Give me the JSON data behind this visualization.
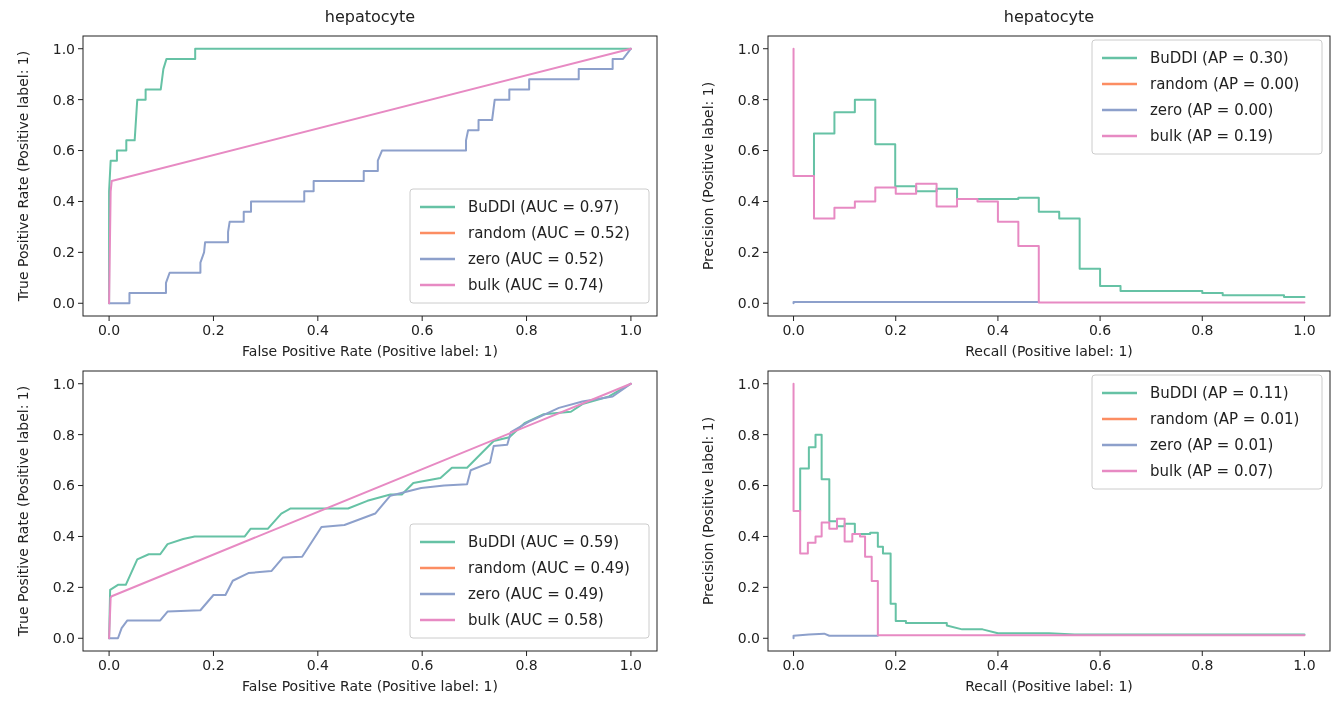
{
  "chart_data": [
    {
      "type": "line",
      "title": "hepatocyte",
      "xlabel": "False Positive Rate (Positive label: 1)",
      "ylabel": "True Positive Rate (Positive label: 1)",
      "xlim": [
        -0.05,
        1.05
      ],
      "ylim": [
        -0.05,
        1.05
      ],
      "xticks": [
        {
          "value": 0,
          "label": "0.0"
        },
        {
          "value": 0.2,
          "label": "0.2"
        },
        {
          "value": 0.4,
          "label": "0.4"
        },
        {
          "value": 0.6,
          "label": "0.6"
        },
        {
          "value": 0.8,
          "label": "0.8"
        },
        {
          "value": 1,
          "label": "1.0"
        }
      ],
      "yticks": [
        {
          "value": 0,
          "label": "0.0"
        },
        {
          "value": 0.2,
          "label": "0.2"
        },
        {
          "value": 0.4,
          "label": "0.4"
        },
        {
          "value": 0.6,
          "label": "0.6"
        },
        {
          "value": 0.8,
          "label": "0.8"
        },
        {
          "value": 1,
          "label": "1.0"
        }
      ],
      "legend": "bottom right",
      "series": [
        {
          "name": "BuDDI (AUC = 0.97)",
          "color": "#66c2a5",
          "x": [
            0,
            0,
            0.003,
            0.015,
            0.015,
            0.033,
            0.033,
            0.049,
            0.054,
            0.07,
            0.07,
            0.099,
            0.104,
            0.11,
            0.165,
            0.165,
            1
          ],
          "values": [
            0,
            0.44,
            0.56,
            0.56,
            0.6,
            0.6,
            0.64,
            0.64,
            0.8,
            0.8,
            0.84,
            0.84,
            0.92,
            0.96,
            0.96,
            1,
            1
          ]
        },
        {
          "name": "random (AUC = 0.52)",
          "color": "#fc8d62"
        },
        {
          "name": "zero (AUC = 0.52)",
          "color": "#8da0cb",
          "x": [
            0,
            0.039,
            0.039,
            0.109,
            0.109,
            0.116,
            0.175,
            0.175,
            0.182,
            0.184,
            0.228,
            0.228,
            0.231,
            0.258,
            0.258,
            0.272,
            0.272,
            0.374,
            0.374,
            0.392,
            0.392,
            0.488,
            0.488,
            0.515,
            0.515,
            0.523,
            0.684,
            0.684,
            0.688,
            0.708,
            0.708,
            0.734,
            0.739,
            0.767,
            0.767,
            0.805,
            0.805,
            0.9,
            0.9,
            0.965,
            0.965,
            0.985,
            1
          ],
          "values": [
            0,
            0,
            0.04,
            0.04,
            0.08,
            0.12,
            0.12,
            0.16,
            0.2,
            0.24,
            0.24,
            0.28,
            0.32,
            0.32,
            0.36,
            0.36,
            0.4,
            0.4,
            0.44,
            0.44,
            0.48,
            0.48,
            0.52,
            0.52,
            0.56,
            0.6,
            0.6,
            0.64,
            0.68,
            0.68,
            0.72,
            0.72,
            0.8,
            0.8,
            0.84,
            0.84,
            0.88,
            0.88,
            0.92,
            0.92,
            0.96,
            0.96,
            1
          ]
        },
        {
          "name": "bulk (AUC = 0.74)",
          "color": "#e78ac3",
          "x": [
            0,
            0.003,
            0.005,
            1
          ],
          "values": [
            0,
            0.44,
            0.48,
            1
          ]
        }
      ]
    },
    {
      "type": "line",
      "title": "hepatocyte",
      "xlabel": "Recall (Positive label: 1)",
      "ylabel": "Precision (Positive label: 1)",
      "xlim": [
        -0.05,
        1.05
      ],
      "ylim": [
        -0.05,
        1.05
      ],
      "xticks": [
        {
          "value": 0,
          "label": "0.0"
        },
        {
          "value": 0.2,
          "label": "0.2"
        },
        {
          "value": 0.4,
          "label": "0.4"
        },
        {
          "value": 0.6,
          "label": "0.6"
        },
        {
          "value": 0.8,
          "label": "0.8"
        },
        {
          "value": 1,
          "label": "1.0"
        }
      ],
      "yticks": [
        {
          "value": 0,
          "label": "0.0"
        },
        {
          "value": 0.2,
          "label": "0.2"
        },
        {
          "value": 0.4,
          "label": "0.4"
        },
        {
          "value": 0.6,
          "label": "0.6"
        },
        {
          "value": 0.8,
          "label": "0.8"
        },
        {
          "value": 1,
          "label": "1.0"
        }
      ],
      "legend": "top right",
      "series": [
        {
          "name": "BuDDI (AP = 0.30)",
          "color": "#66c2a5",
          "x": [
            0.04,
            0.04,
            0.08,
            0.08,
            0.12,
            0.12,
            0.16,
            0.16,
            0.199,
            0.199,
            0.24,
            0.24,
            0.28,
            0.28,
            0.32,
            0.32,
            0.44,
            0.44,
            0.48,
            0.48,
            0.52,
            0.52,
            0.56,
            0.56,
            0.6,
            0.6,
            0.64,
            0.64,
            0.8,
            0.8,
            0.84,
            0.84,
            0.96,
            0.96,
            1
          ],
          "values": [
            0.5,
            0.667,
            0.667,
            0.75,
            0.75,
            0.8,
            0.8,
            0.625,
            0.625,
            0.46,
            0.46,
            0.44,
            0.44,
            0.45,
            0.45,
            0.41,
            0.41,
            0.415,
            0.415,
            0.36,
            0.36,
            0.333,
            0.333,
            0.136,
            0.136,
            0.068,
            0.068,
            0.048,
            0.048,
            0.04,
            0.04,
            0.032,
            0.032,
            0.025,
            0.025
          ]
        },
        {
          "name": "random (AP = 0.00)",
          "color": "#fc8d62"
        },
        {
          "name": "zero (AP = 0.00)",
          "color": "#8da0cb",
          "x": [
            0,
            0,
            0.48
          ],
          "values": [
            0,
            0.005,
            0.005
          ]
        },
        {
          "name": "bulk (AP = 0.19)",
          "color": "#e78ac3",
          "x": [
            0,
            0,
            0.04,
            0.04,
            0.08,
            0.08,
            0.12,
            0.12,
            0.16,
            0.16,
            0.2,
            0.2,
            0.24,
            0.24,
            0.28,
            0.28,
            0.32,
            0.32,
            0.36,
            0.36,
            0.4,
            0.4,
            0.44,
            0.44,
            0.48,
            0.48,
            1
          ],
          "values": [
            1,
            0.5,
            0.5,
            0.333,
            0.333,
            0.375,
            0.375,
            0.4,
            0.4,
            0.455,
            0.455,
            0.43,
            0.43,
            0.47,
            0.47,
            0.38,
            0.38,
            0.41,
            0.41,
            0.4,
            0.4,
            0.32,
            0.32,
            0.225,
            0.225,
            0.003,
            0.003
          ]
        }
      ]
    },
    {
      "type": "line",
      "xlabel": "False Positive Rate (Positive label: 1)",
      "ylabel": "True Positive Rate (Positive label: 1)",
      "xlim": [
        -0.05,
        1.05
      ],
      "ylim": [
        -0.05,
        1.05
      ],
      "xticks": [
        {
          "value": 0,
          "label": "0.0"
        },
        {
          "value": 0.2,
          "label": "0.2"
        },
        {
          "value": 0.4,
          "label": "0.4"
        },
        {
          "value": 0.6,
          "label": "0.6"
        },
        {
          "value": 0.8,
          "label": "0.8"
        },
        {
          "value": 1,
          "label": "1.0"
        }
      ],
      "yticks": [
        {
          "value": 0,
          "label": "0.0"
        },
        {
          "value": 0.2,
          "label": "0.2"
        },
        {
          "value": 0.4,
          "label": "0.4"
        },
        {
          "value": 0.6,
          "label": "0.6"
        },
        {
          "value": 0.8,
          "label": "0.8"
        },
        {
          "value": 1,
          "label": "1.0"
        }
      ],
      "legend": "bottom right",
      "series": [
        {
          "name": "BuDDI (AUC = 0.59)",
          "color": "#66c2a5",
          "x": [
            0,
            0.002,
            0.017,
            0.032,
            0.054,
            0.076,
            0.098,
            0.112,
            0.142,
            0.164,
            0.26,
            0.271,
            0.304,
            0.33,
            0.348,
            0.458,
            0.495,
            0.539,
            0.561,
            0.583,
            0.635,
            0.657,
            0.686,
            0.715,
            0.737,
            0.767,
            0.796,
            0.833,
            0.885,
            0.907,
            0.958,
            1
          ],
          "values": [
            0,
            0.19,
            0.21,
            0.21,
            0.31,
            0.33,
            0.33,
            0.37,
            0.39,
            0.4,
            0.4,
            0.43,
            0.43,
            0.49,
            0.51,
            0.51,
            0.54,
            0.565,
            0.565,
            0.61,
            0.63,
            0.67,
            0.67,
            0.73,
            0.775,
            0.79,
            0.845,
            0.88,
            0.89,
            0.92,
            0.95,
            1
          ]
        },
        {
          "name": "random (AUC = 0.49)",
          "color": "#fc8d62"
        },
        {
          "name": "zero (AUC = 0.49)",
          "color": "#8da0cb",
          "x": [
            0,
            0.017,
            0.024,
            0.035,
            0.098,
            0.112,
            0.175,
            0.2,
            0.223,
            0.237,
            0.267,
            0.311,
            0.333,
            0.37,
            0.407,
            0.451,
            0.51,
            0.539,
            0.598,
            0.642,
            0.686,
            0.693,
            0.73,
            0.737,
            0.763,
            0.77,
            0.804,
            0.862,
            0.907,
            0.965,
            1
          ],
          "values": [
            0,
            0,
            0.04,
            0.07,
            0.07,
            0.105,
            0.11,
            0.17,
            0.17,
            0.226,
            0.256,
            0.264,
            0.317,
            0.32,
            0.437,
            0.445,
            0.49,
            0.56,
            0.59,
            0.6,
            0.605,
            0.66,
            0.69,
            0.755,
            0.76,
            0.81,
            0.85,
            0.905,
            0.93,
            0.95,
            1
          ]
        },
        {
          "name": "bulk (AUC = 0.58)",
          "color": "#e78ac3",
          "x": [
            0,
            0.003,
            0.005,
            1
          ],
          "values": [
            0,
            0.16,
            0.165,
            1
          ]
        }
      ]
    },
    {
      "type": "line",
      "xlabel": "Recall (Positive label: 1)",
      "ylabel": "Precision (Positive label: 1)",
      "xlim": [
        -0.05,
        1.05
      ],
      "ylim": [
        -0.05,
        1.05
      ],
      "xticks": [
        {
          "value": 0,
          "label": "0.0"
        },
        {
          "value": 0.2,
          "label": "0.2"
        },
        {
          "value": 0.4,
          "label": "0.4"
        },
        {
          "value": 0.6,
          "label": "0.6"
        },
        {
          "value": 0.8,
          "label": "0.8"
        },
        {
          "value": 1,
          "label": "1.0"
        }
      ],
      "yticks": [
        {
          "value": 0,
          "label": "0.0"
        },
        {
          "value": 0.2,
          "label": "0.2"
        },
        {
          "value": 0.4,
          "label": "0.4"
        },
        {
          "value": 0.6,
          "label": "0.6"
        },
        {
          "value": 0.8,
          "label": "0.8"
        },
        {
          "value": 1,
          "label": "1.0"
        }
      ],
      "legend": "top right",
      "series": [
        {
          "name": "BuDDI (AP = 0.11)",
          "color": "#66c2a5",
          "x": [
            0.013,
            0.013,
            0.03,
            0.03,
            0.043,
            0.043,
            0.055,
            0.055,
            0.07,
            0.07,
            0.085,
            0.085,
            0.1,
            0.1,
            0.12,
            0.12,
            0.15,
            0.15,
            0.165,
            0.165,
            0.175,
            0.175,
            0.19,
            0.19,
            0.2,
            0.2,
            0.22,
            0.22,
            0.3,
            0.3,
            0.33,
            0.37,
            0.4,
            0.5,
            0.55,
            1
          ],
          "values": [
            0.5,
            0.667,
            0.667,
            0.75,
            0.75,
            0.8,
            0.8,
            0.625,
            0.625,
            0.46,
            0.46,
            0.44,
            0.44,
            0.45,
            0.45,
            0.41,
            0.41,
            0.415,
            0.415,
            0.36,
            0.36,
            0.333,
            0.333,
            0.136,
            0.136,
            0.068,
            0.068,
            0.06,
            0.06,
            0.05,
            0.035,
            0.035,
            0.02,
            0.02,
            0.015,
            0.015
          ]
        },
        {
          "name": "random (AP = 0.01)",
          "color": "#fc8d62"
        },
        {
          "name": "zero (AP = 0.01)",
          "color": "#8da0cb",
          "x": [
            0,
            0,
            0.03,
            0.06,
            0.07,
            0.165
          ],
          "values": [
            0,
            0.01,
            0.015,
            0.018,
            0.01,
            0.01
          ]
        },
        {
          "name": "bulk (AP = 0.07)",
          "color": "#e78ac3",
          "x": [
            0,
            0,
            0.013,
            0.013,
            0.028,
            0.028,
            0.043,
            0.043,
            0.055,
            0.055,
            0.07,
            0.07,
            0.085,
            0.085,
            0.1,
            0.1,
            0.115,
            0.115,
            0.13,
            0.13,
            0.14,
            0.14,
            0.153,
            0.153,
            0.165,
            0.165,
            1
          ],
          "values": [
            1,
            0.5,
            0.5,
            0.333,
            0.333,
            0.375,
            0.375,
            0.4,
            0.4,
            0.455,
            0.455,
            0.43,
            0.43,
            0.47,
            0.47,
            0.38,
            0.38,
            0.41,
            0.41,
            0.4,
            0.4,
            0.32,
            0.32,
            0.225,
            0.225,
            0.012,
            0.012
          ]
        }
      ]
    }
  ]
}
